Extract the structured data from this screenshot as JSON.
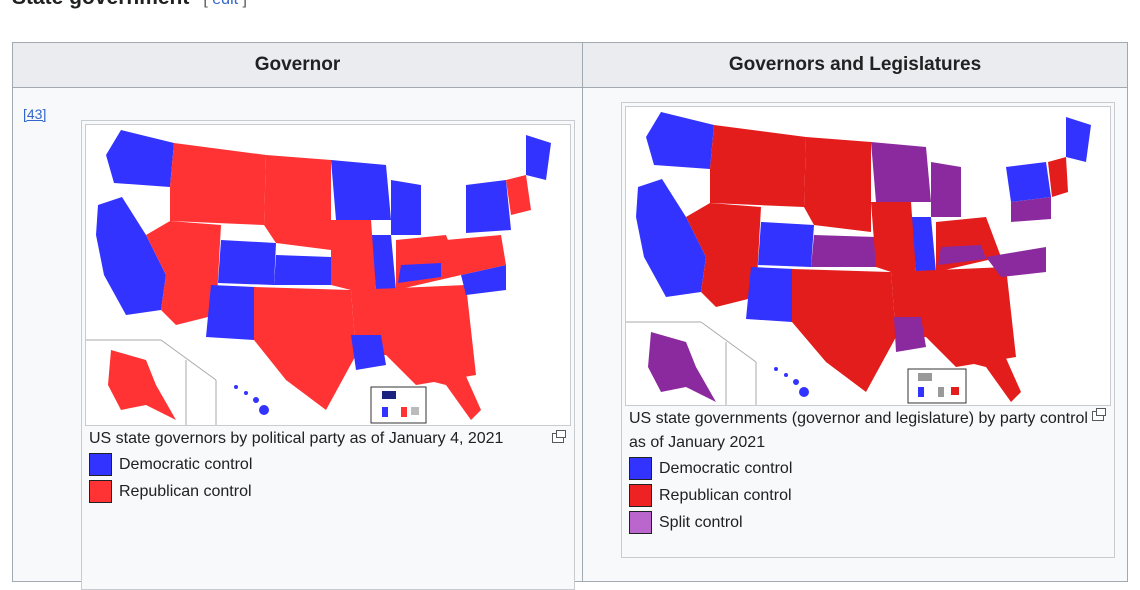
{
  "section": {
    "title": "State government",
    "edit_label": "edit"
  },
  "table": {
    "headers": [
      "Governor",
      "Governors and Legislatures"
    ],
    "ref_label": "[43]"
  },
  "governor_map": {
    "caption": "US state governors by political party as of January 4, 2021",
    "legend": [
      {
        "label": "Democratic control",
        "color": "#3333ff"
      },
      {
        "label": "Republican control",
        "color": "#ff3333"
      }
    ]
  },
  "control_map": {
    "caption": "US state governments (governor and legislature) by party control as of January 2021",
    "legend": [
      {
        "label": "Democratic control",
        "color": "#3333ff"
      },
      {
        "label": "Republican control",
        "color": "#ee2222"
      },
      {
        "label": "Split control",
        "color": "#bb66cc"
      }
    ]
  },
  "colors": {
    "dem": "#3333ff",
    "rep": "#ff3333",
    "rep_dark": "#e31c1c",
    "split": "#8a2be2",
    "split_dark": "#8b2a9e",
    "dark_dem": "#1a237e"
  }
}
